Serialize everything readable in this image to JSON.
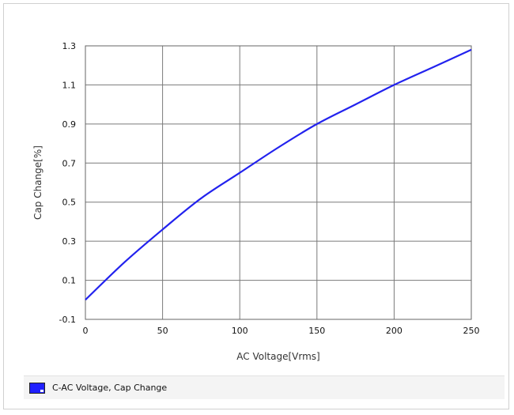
{
  "chart_data": {
    "type": "line",
    "title": "",
    "xlabel": "AC Voltage[Vrms]",
    "ylabel": "Cap Change[%]",
    "xlim": [
      0,
      250
    ],
    "ylim": [
      -0.1,
      1.3
    ],
    "x_ticks": [
      "0",
      "50",
      "100",
      "150",
      "200",
      "250"
    ],
    "y_ticks": [
      "-0.1",
      "0.1",
      "0.3",
      "0.5",
      "0.7",
      "0.9",
      "1.1",
      "1.3"
    ],
    "grid": true,
    "legend_position": "bottom",
    "series": [
      {
        "name": "C-AC Voltage, Cap Change",
        "color": "#2222ee",
        "x": [
          0,
          25,
          50,
          75,
          100,
          125,
          150,
          175,
          200,
          225,
          250
        ],
        "y": [
          0.0,
          0.19,
          0.36,
          0.52,
          0.65,
          0.78,
          0.9,
          1.0,
          1.1,
          1.19,
          1.28
        ]
      }
    ]
  }
}
